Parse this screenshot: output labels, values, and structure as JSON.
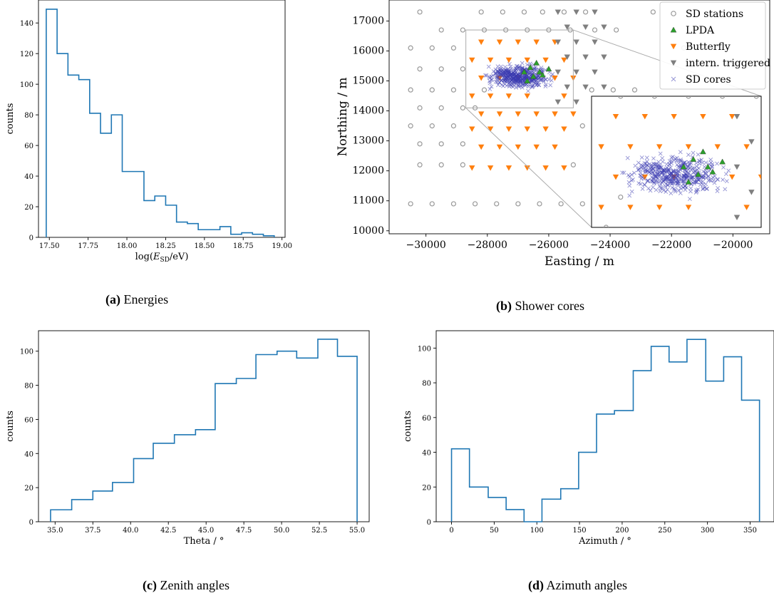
{
  "captions": {
    "a": {
      "tag": "(a)",
      "text": "Energies"
    },
    "b": {
      "tag": "(b)",
      "text": "Shower cores"
    },
    "c": {
      "tag": "(c)",
      "text": "Zenith angles"
    },
    "d": {
      "tag": "(d)",
      "text": "Azimuth angles"
    }
  },
  "colors": {
    "hist": "#1f77b4",
    "sd_station": "#999999",
    "lpda": "#2ca02c",
    "butterfly": "#ff7f0e",
    "triggered": "#7f7f7f",
    "sd_cores": "#6666cc"
  },
  "chart_data": [
    {
      "id": "a",
      "type": "bar",
      "style": "step-histogram",
      "xlabel": "log(E_SD/eV)",
      "xlabel_parts": {
        "pre": "log(",
        "sym": "E",
        "sub": "SD",
        "post": "/eV)"
      },
      "ylabel": "counts",
      "xlim": [
        17.43,
        19.02
      ],
      "ylim": [
        0,
        155
      ],
      "xticks": [
        17.5,
        17.75,
        18.0,
        18.25,
        18.5,
        18.75,
        19.0
      ],
      "xtick_labels": [
        "17.50",
        "17.75",
        "18.00",
        "18.25",
        "18.50",
        "18.75",
        "19.00"
      ],
      "yticks": [
        0,
        20,
        40,
        60,
        80,
        100,
        120,
        140
      ],
      "ytick_labels": [
        "0",
        "20",
        "40",
        "60",
        "80",
        "100",
        "120",
        "140"
      ],
      "bin_edges": [
        17.48,
        17.55,
        17.62,
        17.69,
        17.76,
        17.83,
        17.9,
        17.97,
        18.04,
        18.11,
        18.18,
        18.25,
        18.32,
        18.39,
        18.46,
        18.53,
        18.6,
        18.67,
        18.74,
        18.81,
        18.88,
        18.95
      ],
      "values": [
        149,
        120,
        106,
        103,
        81,
        68,
        80,
        43,
        43,
        24,
        27,
        21,
        10,
        9,
        5,
        5,
        7,
        2,
        3,
        2,
        1
      ]
    },
    {
      "id": "b",
      "type": "scatter",
      "xlabel": "Easting / m",
      "ylabel": "Northing / m",
      "xlim": [
        -31200,
        -18800
      ],
      "ylim": [
        9900,
        17700
      ],
      "xticks": [
        -30000,
        -28000,
        -26000,
        -24000,
        -22000,
        -20000
      ],
      "xtick_labels": [
        "−30000",
        "−28000",
        "−26000",
        "−24000",
        "−22000",
        "−20000"
      ],
      "yticks": [
        10000,
        11000,
        12000,
        13000,
        14000,
        15000,
        16000,
        17000
      ],
      "ytick_labels": [
        "10000",
        "11000",
        "12000",
        "13000",
        "14000",
        "15000",
        "16000",
        "17000"
      ],
      "legend_position": "top-right",
      "legend": [
        {
          "key": "sd",
          "label": "SD stations",
          "marker": "circle"
        },
        {
          "key": "lpda",
          "label": "LPDA",
          "marker": "triangle-up"
        },
        {
          "key": "bf",
          "label": "Butterfly",
          "marker": "triangle-down"
        },
        {
          "key": "trig",
          "label": "intern. triggered",
          "marker": "triangle-down"
        },
        {
          "key": "cores",
          "label": "SD cores",
          "marker": "x"
        }
      ],
      "zoom_region": {
        "x": [
          -28700,
          -25200
        ],
        "y": [
          14100,
          16700
        ]
      },
      "series": {
        "sd_stations": [
          [
            -30200,
            17300
          ],
          [
            -29500,
            16700
          ],
          [
            -28800,
            16700
          ],
          [
            -30500,
            16100
          ],
          [
            -29800,
            16100
          ],
          [
            -29100,
            16100
          ],
          [
            -30200,
            15400
          ],
          [
            -29500,
            15400
          ],
          [
            -28800,
            15400
          ],
          [
            -30500,
            14700
          ],
          [
            -29800,
            14700
          ],
          [
            -29100,
            14700
          ],
          [
            -30200,
            14100
          ],
          [
            -29500,
            14100
          ],
          [
            -28800,
            14100
          ],
          [
            -30500,
            13500
          ],
          [
            -29800,
            13500
          ],
          [
            -29100,
            13500
          ],
          [
            -30200,
            12900
          ],
          [
            -29500,
            12900
          ],
          [
            -28800,
            12900
          ],
          [
            -30200,
            12200
          ],
          [
            -29500,
            12200
          ],
          [
            -28800,
            12200
          ],
          [
            -30500,
            10900
          ],
          [
            -29800,
            10900
          ],
          [
            -29100,
            10900
          ],
          [
            -28400,
            10900
          ],
          [
            -27700,
            10900
          ],
          [
            -27000,
            10900
          ],
          [
            -26300,
            10900
          ],
          [
            -25600,
            10900
          ],
          [
            -24900,
            10900
          ],
          [
            -25200,
            12200
          ],
          [
            -24500,
            12200
          ],
          [
            -24900,
            13500
          ],
          [
            -24200,
            13500
          ],
          [
            -23500,
            13500
          ],
          [
            -22800,
            13500
          ],
          [
            -24600,
            14700
          ],
          [
            -23900,
            14700
          ],
          [
            -23200,
            14700
          ],
          [
            -24500,
            16700
          ],
          [
            -23800,
            16700
          ],
          [
            -22600,
            17300
          ],
          [
            -21600,
            16100
          ],
          [
            -21000,
            15600
          ],
          [
            -22800,
            12200
          ],
          [
            -22100,
            12200
          ],
          [
            -21400,
            12200
          ],
          [
            -20700,
            12200
          ],
          [
            -20000,
            12200
          ],
          [
            -19300,
            12200
          ],
          [
            -21800,
            13500
          ],
          [
            -21100,
            13500
          ],
          [
            -28200,
            17300
          ],
          [
            -27500,
            17300
          ],
          [
            -26800,
            17300
          ],
          [
            -26200,
            17300
          ],
          [
            -25500,
            17300
          ],
          [
            -24800,
            17300
          ],
          [
            -28100,
            16700
          ],
          [
            -27400,
            16700
          ],
          [
            -26700,
            16700
          ],
          [
            -26000,
            16700
          ],
          [
            -25300,
            16700
          ],
          [
            -28400,
            14100
          ],
          [
            -28100,
            14700
          ]
        ],
        "lpda": [
          [
            -26800,
            15300
          ],
          [
            -26600,
            15450
          ],
          [
            -26400,
            15600
          ],
          [
            -26300,
            15300
          ],
          [
            -26500,
            15150
          ],
          [
            -26700,
            15000
          ],
          [
            -26200,
            15200
          ],
          [
            -26000,
            15400
          ]
        ],
        "butterfly": [
          [
            -28500,
            15700
          ],
          [
            -27900,
            15700
          ],
          [
            -27300,
            15700
          ],
          [
            -26700,
            15700
          ],
          [
            -28200,
            15100
          ],
          [
            -27600,
            15100
          ],
          [
            -27000,
            15100
          ],
          [
            -28500,
            14500
          ],
          [
            -27900,
            14500
          ],
          [
            -27300,
            14500
          ],
          [
            -26700,
            14500
          ],
          [
            -28200,
            13900
          ],
          [
            -27600,
            13900
          ],
          [
            -27000,
            13900
          ],
          [
            -26400,
            13900
          ],
          [
            -25800,
            13900
          ],
          [
            -25200,
            13900
          ],
          [
            -28500,
            13400
          ],
          [
            -27900,
            13400
          ],
          [
            -27300,
            13400
          ],
          [
            -26700,
            13400
          ],
          [
            -26100,
            13400
          ],
          [
            -25500,
            13400
          ],
          [
            -28200,
            12800
          ],
          [
            -27600,
            12800
          ],
          [
            -27000,
            12800
          ],
          [
            -26400,
            12800
          ],
          [
            -25800,
            12800
          ],
          [
            -28500,
            12100
          ],
          [
            -27900,
            12100
          ],
          [
            -27300,
            12100
          ],
          [
            -26700,
            12100
          ],
          [
            -26100,
            12100
          ],
          [
            -25500,
            12100
          ],
          [
            -28200,
            16300
          ],
          [
            -27600,
            16300
          ],
          [
            -27000,
            16300
          ],
          [
            -26400,
            16300
          ],
          [
            -25800,
            16300
          ],
          [
            -26100,
            15700
          ],
          [
            -25500,
            15700
          ],
          [
            -25800,
            15100
          ],
          [
            -25200,
            15100
          ],
          [
            -25500,
            14500
          ]
        ],
        "triggered": [
          [
            -25700,
            17300
          ],
          [
            -25100,
            17300
          ],
          [
            -24500,
            17300
          ],
          [
            -25400,
            16800
          ],
          [
            -24800,
            16800
          ],
          [
            -24200,
            16800
          ],
          [
            -25700,
            16300
          ],
          [
            -25100,
            16300
          ],
          [
            -24500,
            16300
          ],
          [
            -25400,
            15800
          ],
          [
            -24800,
            15800
          ],
          [
            -24200,
            15800
          ],
          [
            -25700,
            15300
          ],
          [
            -25100,
            15300
          ],
          [
            -24500,
            15300
          ],
          [
            -25400,
            14800
          ],
          [
            -24800,
            14800
          ],
          [
            -24200,
            14800
          ],
          [
            -25700,
            14300
          ],
          [
            -25100,
            14300
          ]
        ]
      }
    },
    {
      "id": "c",
      "type": "bar",
      "style": "step-histogram",
      "xlabel": "Theta / °",
      "ylabel": "counts",
      "xlim": [
        33.9,
        55.8
      ],
      "ylim": [
        0,
        112
      ],
      "xticks": [
        35.0,
        37.5,
        40.0,
        42.5,
        45.0,
        47.5,
        50.0,
        52.5,
        55.0
      ],
      "xtick_labels": [
        "35.0",
        "37.5",
        "40.0",
        "42.5",
        "45.0",
        "47.5",
        "50.0",
        "52.5",
        "55.0"
      ],
      "yticks": [
        0,
        20,
        40,
        60,
        80,
        100
      ],
      "ytick_labels": [
        "0",
        "20",
        "40",
        "60",
        "80",
        "100"
      ],
      "bin_edges": [
        34.7,
        36.1,
        37.5,
        38.8,
        40.2,
        41.5,
        42.9,
        44.3,
        45.6,
        47.0,
        48.3,
        49.7,
        51.0,
        52.4,
        53.7,
        55.0
      ],
      "values": [
        7,
        13,
        18,
        23,
        37,
        46,
        51,
        54,
        81,
        84,
        98,
        100,
        96,
        107,
        97
      ]
    },
    {
      "id": "d",
      "type": "bar",
      "style": "step-histogram",
      "xlabel": "Azimuth / °",
      "ylabel": "counts",
      "xlim": [
        -18,
        378
      ],
      "ylim": [
        0,
        110
      ],
      "xticks": [
        0,
        50,
        100,
        150,
        200,
        250,
        300,
        350
      ],
      "xtick_labels": [
        "0",
        "50",
        "100",
        "150",
        "200",
        "250",
        "300",
        "350"
      ],
      "yticks": [
        0,
        20,
        40,
        60,
        80,
        100
      ],
      "ytick_labels": [
        "0",
        "20",
        "40",
        "60",
        "80",
        "100"
      ],
      "bin_edges": [
        0,
        21,
        43,
        64,
        85,
        106,
        128,
        149,
        170,
        191,
        213,
        234,
        255,
        276,
        298,
        319,
        340,
        361
      ],
      "values": [
        42,
        20,
        14,
        7,
        0,
        13,
        19,
        40,
        62,
        64,
        87,
        101,
        92,
        105,
        81,
        95,
        70
      ]
    }
  ]
}
